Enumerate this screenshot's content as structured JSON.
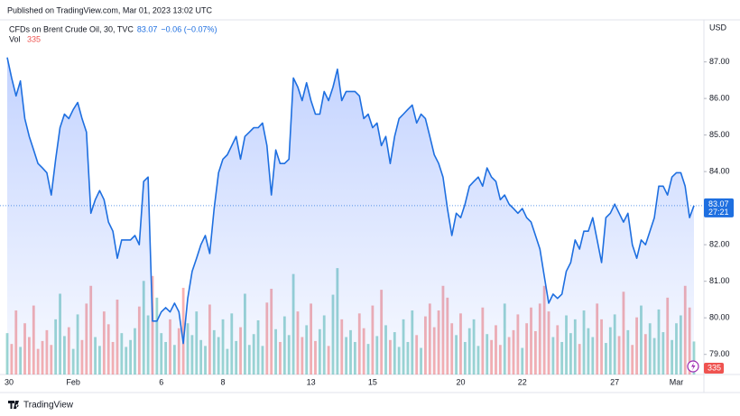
{
  "header": {
    "published": "Published on TradingView.com, Mar 01, 2023 13:02 UTC"
  },
  "chart_data": {
    "type": "area",
    "currency": "USD",
    "change": "−0.06 (−0.07%)",
    "countdown": "27:21",
    "categories": [
      "30",
      null,
      null,
      null,
      null,
      null,
      null,
      null,
      null,
      null,
      null,
      null,
      null,
      null,
      null,
      "Feb",
      null,
      null,
      null,
      null,
      null,
      null,
      null,
      null,
      null,
      null,
      null,
      null,
      null,
      null,
      null,
      null,
      null,
      null,
      null,
      "6",
      null,
      null,
      null,
      null,
      null,
      null,
      null,
      null,
      null,
      null,
      null,
      null,
      null,
      "8",
      null,
      null,
      null,
      null,
      null,
      null,
      null,
      null,
      null,
      null,
      null,
      null,
      null,
      null,
      null,
      null,
      null,
      null,
      null,
      "13",
      null,
      null,
      null,
      null,
      null,
      null,
      null,
      null,
      null,
      null,
      null,
      null,
      null,
      "15",
      null,
      null,
      null,
      null,
      null,
      null,
      null,
      null,
      null,
      null,
      null,
      null,
      null,
      null,
      null,
      null,
      null,
      null,
      null,
      "20",
      null,
      null,
      null,
      null,
      null,
      null,
      null,
      null,
      null,
      null,
      null,
      null,
      null,
      "22",
      null,
      null,
      null,
      null,
      null,
      null,
      null,
      null,
      null,
      null,
      null,
      null,
      null,
      null,
      null,
      null,
      null,
      null,
      null,
      null,
      "27",
      null,
      null,
      null,
      null,
      null,
      null,
      null,
      null,
      null,
      null,
      null,
      null,
      null,
      "Mar",
      null,
      null,
      null,
      null
    ],
    "series": [
      {
        "name": "CFDs on Brent Crude Oil, 30, TVC",
        "color": "#1e6fe0",
        "values": [
          87.12,
          86.56,
          86.07,
          86.48,
          85.45,
          84.96,
          84.59,
          84.22,
          84.1,
          83.97,
          83.36,
          84.34,
          85.2,
          85.57,
          85.45,
          85.7,
          85.89,
          85.45,
          85.08,
          82.86,
          83.23,
          83.48,
          83.23,
          82.62,
          82.37,
          81.63,
          82.13,
          82.13,
          82.13,
          82.25,
          82.0,
          83.73,
          83.85,
          79.91,
          79.91,
          80.16,
          80.28,
          80.16,
          80.4,
          80.16,
          79.3,
          80.53,
          81.27,
          81.63,
          82.0,
          82.25,
          81.76,
          82.99,
          83.97,
          84.34,
          84.46,
          84.71,
          84.96,
          84.34,
          84.96,
          85.08,
          85.2,
          85.2,
          85.33,
          84.71,
          83.36,
          84.59,
          84.22,
          84.22,
          84.34,
          86.56,
          86.31,
          85.94,
          86.43,
          85.94,
          85.57,
          85.57,
          86.19,
          85.94,
          86.31,
          86.8,
          85.94,
          86.19,
          86.19,
          86.19,
          86.07,
          85.45,
          85.57,
          85.2,
          85.33,
          84.71,
          84.96,
          84.22,
          84.96,
          85.45,
          85.57,
          85.7,
          85.82,
          85.33,
          85.57,
          85.45,
          84.96,
          84.46,
          84.22,
          83.85,
          82.99,
          82.25,
          82.86,
          82.74,
          83.11,
          83.6,
          83.73,
          83.85,
          83.6,
          84.1,
          83.85,
          83.73,
          83.23,
          83.36,
          83.11,
          82.99,
          82.86,
          82.99,
          82.74,
          82.62,
          82.25,
          81.88,
          81.14,
          80.4,
          80.65,
          80.53,
          80.65,
          81.27,
          81.51,
          82.13,
          81.88,
          82.37,
          82.37,
          82.74,
          82.13,
          81.51,
          82.74,
          82.86,
          83.11,
          82.86,
          82.62,
          82.86,
          82.0,
          81.63,
          82.13,
          82.0,
          82.37,
          82.74,
          83.6,
          83.6,
          83.36,
          83.85,
          83.97,
          83.97,
          83.6,
          82.74,
          83.07
        ]
      },
      {
        "name": "Vol",
        "axis": "y2",
        "up_color": "#26a69a",
        "down_color": "#ef5350",
        "values": [
          420,
          310,
          650,
          280,
          520,
          380,
          700,
          260,
          340,
          450,
          300,
          560,
          820,
          390,
          480,
          260,
          610,
          350,
          720,
          900,
          380,
          290,
          640,
          510,
          330,
          760,
          420,
          280,
          350,
          470,
          690,
          950,
          600,
          1000,
          780,
          420,
          330,
          560,
          300,
          470,
          880,
          520,
          400,
          640,
          350,
          290,
          710,
          450,
          380,
          560,
          260,
          620,
          340,
          480,
          820,
          300,
          410,
          550,
          290,
          730,
          870,
          460,
          330,
          590,
          400,
          1020,
          640,
          380,
          500,
          720,
          340,
          460,
          600,
          290,
          810,
          1080,
          560,
          380,
          450,
          330,
          620,
          470,
          310,
          700,
          390,
          860,
          500,
          350,
          430,
          280,
          560,
          330,
          650,
          400,
          270,
          590,
          720,
          480,
          650,
          900,
          780,
          520,
          400,
          620,
          330,
          470,
          560,
          290,
          680,
          410,
          350,
          500,
          300,
          720,
          380,
          450,
          610,
          270,
          520,
          680,
          440,
          720,
          900,
          640,
          380,
          500,
          330,
          600,
          420,
          560,
          310,
          650,
          470,
          380,
          720,
          560,
          320,
          480,
          610,
          390,
          840,
          450,
          300,
          580,
          700,
          410,
          520,
          370,
          660,
          430,
          780,
          350,
          520,
          600,
          900,
          680,
          335
        ]
      }
    ],
    "ylim": [
      78.45,
      88.15
    ],
    "yticks": [
      {
        "value": 79,
        "label": "79.00"
      },
      {
        "value": 80,
        "label": "80.00"
      },
      {
        "value": 81,
        "label": "81.00"
      },
      {
        "value": 82,
        "label": "82.00"
      },
      {
        "value": 83,
        "label": "83.00"
      },
      {
        "value": 84,
        "label": "84.00"
      },
      {
        "value": 85,
        "label": "85.00"
      },
      {
        "value": 86,
        "label": "86.00"
      },
      {
        "value": 87,
        "label": "87.00"
      }
    ],
    "y2lim": [
      0,
      3600
    ]
  },
  "footer": {
    "brand": "TradingView"
  }
}
